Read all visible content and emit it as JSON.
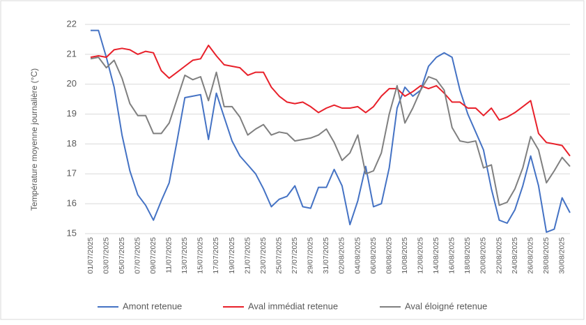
{
  "chart_data": {
    "type": "line",
    "y_label": "Température moyenne journalière (°C)",
    "categories": [
      "01/07/2025",
      null,
      "03/07/2025",
      null,
      "05/07/2025",
      null,
      "07/07/2025",
      null,
      "09/07/2025",
      null,
      "11/07/2025",
      null,
      "13/07/2025",
      null,
      "15/07/2025",
      null,
      "17/07/2025",
      null,
      "19/07/2025",
      null,
      "21/07/2025",
      null,
      "23/07/2025",
      null,
      "25/07/2025",
      null,
      "27/07/2025",
      null,
      "29/07/2025",
      null,
      "31/07/2025",
      null,
      "02/08/2025",
      null,
      "04/08/2025",
      null,
      "06/08/2025",
      null,
      "08/08/2025",
      null,
      "10/08/2025",
      null,
      "12/08/2025",
      null,
      "14/08/2025",
      null,
      "16/08/2025",
      null,
      "18/08/2025",
      null,
      "20/08/2025",
      null,
      "22/08/2025",
      null,
      "24/08/2025",
      null,
      "26/08/2025",
      null,
      "28/08/2025",
      null,
      "30/08/2025",
      null
    ],
    "series": [
      {
        "name": "Amont retenue",
        "color": "#4472c4",
        "values": [
          21.8,
          21.8,
          20.9,
          19.9,
          18.3,
          17.1,
          16.3,
          15.95,
          15.45,
          16.1,
          16.7,
          18.1,
          19.55,
          19.6,
          19.65,
          18.15,
          19.7,
          18.9,
          18.1,
          17.6,
          17.3,
          17.0,
          16.5,
          15.9,
          16.15,
          16.25,
          16.6,
          15.9,
          15.85,
          16.55,
          16.55,
          17.15,
          16.6,
          15.3,
          16.1,
          17.25,
          15.9,
          16.0,
          17.2,
          19.2,
          19.9,
          19.6,
          19.8,
          20.6,
          20.9,
          21.05,
          20.9,
          19.8,
          19.0,
          18.4,
          17.8,
          16.5,
          15.45,
          15.35,
          15.8,
          16.6,
          17.6,
          16.6,
          15.05,
          15.15,
          16.2,
          15.7
        ]
      },
      {
        "name": "Aval immédiat retenue",
        "color": "#e8202a",
        "values": [
          20.9,
          20.95,
          20.9,
          21.15,
          21.2,
          21.15,
          21.0,
          21.1,
          21.05,
          20.45,
          20.2,
          20.4,
          20.6,
          20.8,
          20.85,
          21.3,
          20.95,
          20.65,
          20.6,
          20.55,
          20.3,
          20.4,
          20.4,
          19.9,
          19.6,
          19.4,
          19.35,
          19.4,
          19.25,
          19.05,
          19.2,
          19.3,
          19.2,
          19.2,
          19.25,
          19.05,
          19.25,
          19.6,
          19.85,
          19.85,
          19.6,
          19.75,
          19.95,
          19.85,
          19.95,
          19.7,
          19.4,
          19.4,
          19.2,
          19.2,
          18.95,
          19.2,
          18.8,
          18.9,
          19.05,
          19.25,
          19.45,
          18.35,
          18.05,
          18.0,
          17.95,
          17.6
        ]
      },
      {
        "name": "Aval éloigné retenue",
        "color": "#7f7f7f",
        "values": [
          20.85,
          20.9,
          20.55,
          20.8,
          20.2,
          19.35,
          18.95,
          18.95,
          18.35,
          18.35,
          18.7,
          19.5,
          20.3,
          20.15,
          20.25,
          19.45,
          20.4,
          19.25,
          19.25,
          18.9,
          18.3,
          18.5,
          18.65,
          18.3,
          18.4,
          18.35,
          18.1,
          18.15,
          18.2,
          18.3,
          18.5,
          18.05,
          17.45,
          17.7,
          18.3,
          17.0,
          17.1,
          17.7,
          19.0,
          19.95,
          18.7,
          19.2,
          19.8,
          20.25,
          20.15,
          19.8,
          18.55,
          18.1,
          18.05,
          18.1,
          17.2,
          17.3,
          15.95,
          16.05,
          16.5,
          17.2,
          18.25,
          17.8,
          16.7,
          17.1,
          17.55,
          17.25
        ]
      }
    ],
    "ylim": [
      15,
      22
    ],
    "yticks": [
      15,
      16,
      17,
      18,
      19,
      20,
      21,
      22
    ],
    "grid": true,
    "legend": "bottom"
  }
}
